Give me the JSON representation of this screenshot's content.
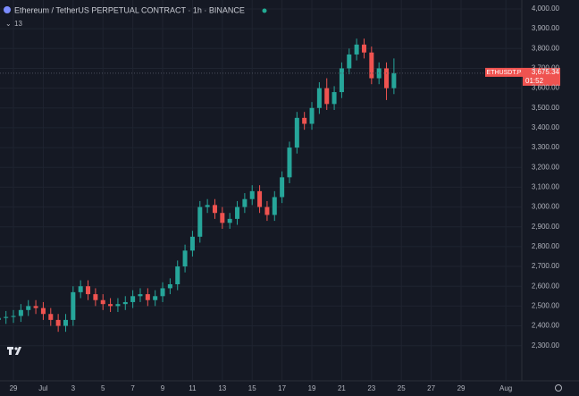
{
  "chart_data": {
    "type": "candlestick",
    "title": "Ethereum / TetherUS PERPETUAL CONTRACT · 1h · BINANCE",
    "badge": "13",
    "up_color": "#26a69a",
    "down_color": "#ef5350",
    "grid": true,
    "open": [
      2430,
      2440,
      2445,
      2450,
      2480,
      2500,
      2490,
      2460,
      2430,
      2400,
      2430,
      2570,
      2600,
      2560,
      2530,
      2510,
      2500,
      2510,
      2520,
      2550,
      2560,
      2530,
      2550,
      2590,
      2610,
      2700,
      2780,
      2850,
      3000,
      3010,
      2970,
      2920,
      2940,
      3000,
      3040,
      3080,
      3000,
      2960,
      3050,
      3150,
      3300,
      3450,
      3420,
      3500,
      3600,
      3520,
      3580,
      3700,
      3770,
      3820,
      3780,
      3650,
      3700,
      3600
    ],
    "high": [
      2470,
      2475,
      2480,
      2510,
      2530,
      2530,
      2520,
      2490,
      2460,
      2460,
      2600,
      2630,
      2630,
      2590,
      2560,
      2540,
      2540,
      2550,
      2580,
      2590,
      2590,
      2580,
      2620,
      2640,
      2730,
      2810,
      2880,
      3030,
      3040,
      3040,
      3000,
      2970,
      3030,
      3070,
      3110,
      3110,
      3030,
      3080,
      3180,
      3330,
      3480,
      3480,
      3530,
      3630,
      3650,
      3610,
      3730,
      3800,
      3850,
      3850,
      3810,
      3730,
      3730,
      3750
    ],
    "low": [
      2400,
      2410,
      2415,
      2420,
      2450,
      2460,
      2430,
      2400,
      2370,
      2370,
      2400,
      2540,
      2530,
      2500,
      2480,
      2470,
      2470,
      2480,
      2490,
      2520,
      2500,
      2500,
      2520,
      2560,
      2580,
      2670,
      2750,
      2820,
      2970,
      2940,
      2890,
      2890,
      2910,
      2970,
      3010,
      2970,
      2930,
      2930,
      3020,
      3120,
      3270,
      3390,
      3390,
      3470,
      3490,
      3490,
      3550,
      3670,
      3740,
      3750,
      3620,
      3620,
      3540,
      3570
    ],
    "close": [
      2440,
      2445,
      2450,
      2480,
      2500,
      2490,
      2460,
      2430,
      2400,
      2430,
      2570,
      2600,
      2560,
      2530,
      2510,
      2500,
      2510,
      2520,
      2550,
      2560,
      2530,
      2550,
      2590,
      2610,
      2700,
      2780,
      2850,
      3000,
      3010,
      2970,
      2920,
      2940,
      3000,
      3040,
      3080,
      3000,
      2960,
      3050,
      3150,
      3300,
      3450,
      3420,
      3500,
      3600,
      3520,
      3580,
      3700,
      3770,
      3820,
      3780,
      3650,
      3700,
      3600,
      3676
    ],
    "ylim": [
      2240,
      4045
    ],
    "yticks": [
      {
        "value": 2300,
        "label": "2,300.00"
      },
      {
        "value": 2400,
        "label": "2,400.00"
      },
      {
        "value": 2500,
        "label": "2,500.00"
      },
      {
        "value": 2600,
        "label": "2,600.00"
      },
      {
        "value": 2700,
        "label": "2,700.00"
      },
      {
        "value": 2800,
        "label": "2,800.00"
      },
      {
        "value": 2900,
        "label": "2,900.00"
      },
      {
        "value": 3000,
        "label": "3,000.00"
      },
      {
        "value": 3100,
        "label": "3,100.00"
      },
      {
        "value": 3200,
        "label": "3,200.00"
      },
      {
        "value": 3300,
        "label": "3,300.00"
      },
      {
        "value": 3400,
        "label": "3,400.00"
      },
      {
        "value": 3500,
        "label": "3,500.00"
      },
      {
        "value": 3600,
        "label": "3,600.00"
      },
      {
        "value": 3700,
        "label": "3,700.00"
      },
      {
        "value": 3800,
        "label": "3,800.00"
      },
      {
        "value": 3900,
        "label": "3,900.00"
      },
      {
        "value": 4000,
        "label": "4,000.00"
      }
    ],
    "xlim": [
      0.2,
      70.5
    ],
    "xticks": [
      {
        "value": 2,
        "label": "29"
      },
      {
        "value": 6,
        "label": "Jul"
      },
      {
        "value": 10,
        "label": "3"
      },
      {
        "value": 14,
        "label": "5"
      },
      {
        "value": 18,
        "label": "7"
      },
      {
        "value": 22,
        "label": "9"
      },
      {
        "value": 26,
        "label": "11"
      },
      {
        "value": 30,
        "label": "13"
      },
      {
        "value": 34,
        "label": "15"
      },
      {
        "value": 38,
        "label": "17"
      },
      {
        "value": 42,
        "label": "19"
      },
      {
        "value": 46,
        "label": "21"
      },
      {
        "value": 50,
        "label": "23"
      },
      {
        "value": 54,
        "label": "25"
      },
      {
        "value": 58,
        "label": "27"
      },
      {
        "value": 62,
        "label": "29"
      },
      {
        "value": 68,
        "label": "Aug"
      }
    ],
    "symbol_tag": "ETHUSDT.P",
    "last_price": {
      "value": 3675.34,
      "label": "3,675.34"
    },
    "countdown": "01:52"
  }
}
